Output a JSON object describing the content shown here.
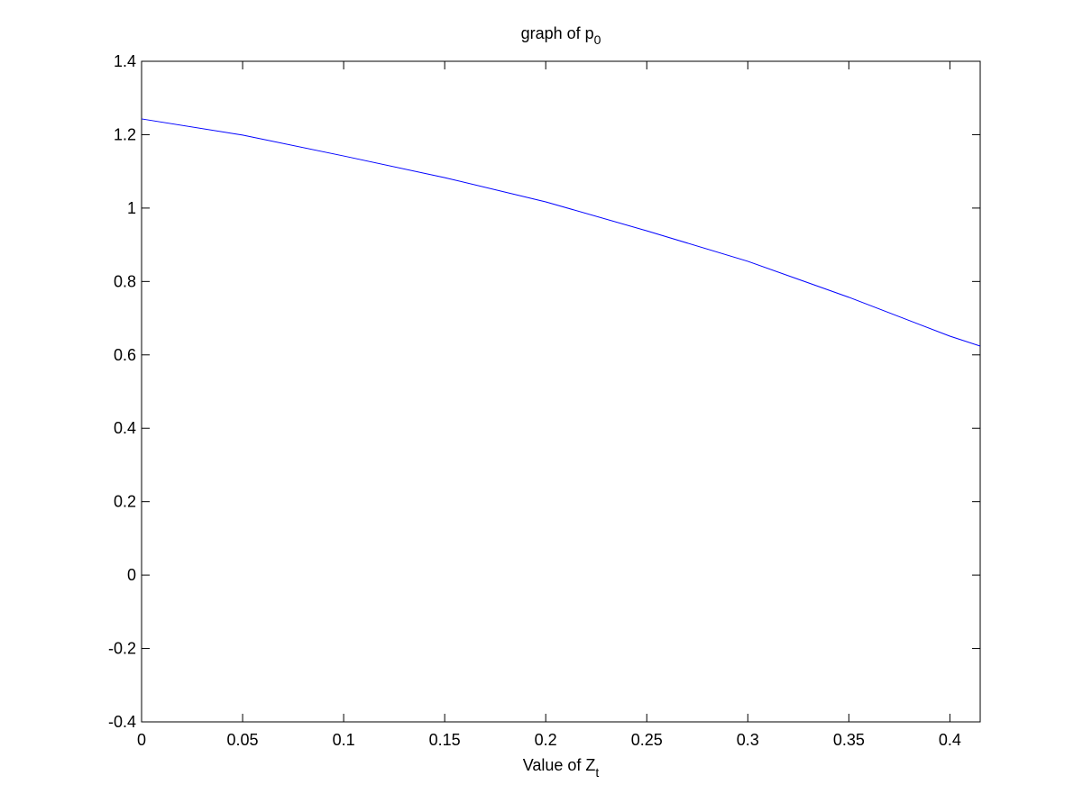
{
  "chart_data": {
    "type": "line",
    "title": {
      "text": "graph of p",
      "subscript": "0"
    },
    "x_label": {
      "text": "Value of Z",
      "subscript": "t"
    },
    "x": [
      0,
      0.05,
      0.1,
      0.15,
      0.2,
      0.25,
      0.3,
      0.35,
      0.4,
      0.415
    ],
    "series": [
      {
        "color": "#0000ff",
        "values": [
          1.243,
          1.199,
          1.142,
          1.083,
          1.017,
          0.938,
          0.855,
          0.757,
          0.651,
          0.624
        ]
      }
    ],
    "xlim": [
      0,
      0.415
    ],
    "ylim": [
      -0.4,
      1.4
    ],
    "xticks": [
      0,
      0.05,
      0.1,
      0.15,
      0.2,
      0.25,
      0.3,
      0.35,
      0.4
    ],
    "yticks": [
      -0.4,
      -0.2,
      0,
      0.2,
      0.4,
      0.6,
      0.8,
      1,
      1.2,
      1.4
    ],
    "grid": false
  }
}
